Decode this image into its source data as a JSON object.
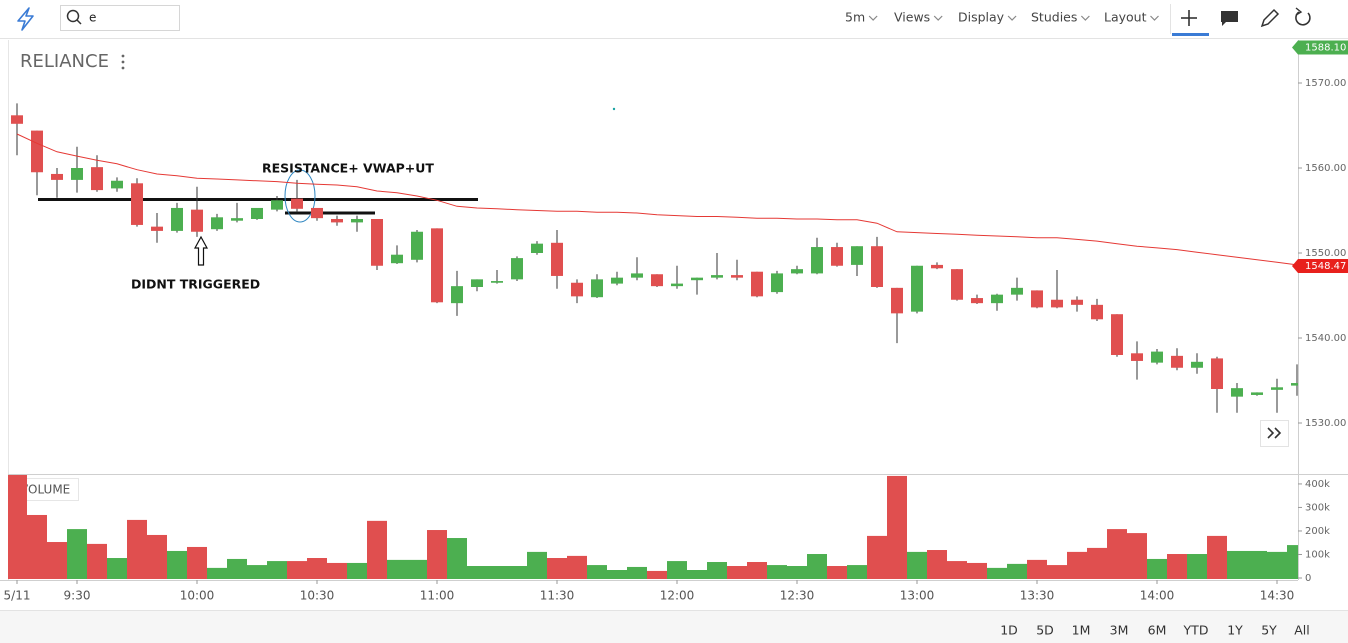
{
  "toolbar": {
    "search": "e",
    "menus": [
      "5m",
      "Views",
      "Display",
      "Studies",
      "Layout"
    ]
  },
  "chart_data": {
    "type": "candlestick",
    "title": "RELIANCE",
    "x": [
      555,
      560,
      565,
      570,
      575,
      580,
      585,
      590,
      595,
      600,
      605,
      610,
      615,
      620,
      625,
      630,
      635,
      640,
      645,
      650,
      655,
      660,
      665,
      670,
      675,
      680,
      685,
      690,
      695,
      700,
      705,
      710,
      715,
      720,
      725,
      730,
      735,
      740,
      745,
      750,
      755,
      760,
      765,
      770,
      775,
      780,
      785,
      790,
      795,
      800,
      805,
      810,
      815,
      820,
      825,
      830,
      835,
      840,
      845,
      850,
      855,
      860,
      865,
      870,
      875
    ],
    "xlim": [
      552.75,
      875.25
    ],
    "xticks": [
      {
        "value": 555,
        "label": "5/11"
      },
      {
        "value": 570,
        "label": "9:30"
      },
      {
        "value": 600,
        "label": "10:00"
      },
      {
        "value": 630,
        "label": "10:30"
      },
      {
        "value": 660,
        "label": "11:00"
      },
      {
        "value": 690,
        "label": "11:30"
      },
      {
        "value": 720,
        "label": "12:00"
      },
      {
        "value": 750,
        "label": "12:30"
      },
      {
        "value": 780,
        "label": "13:00"
      },
      {
        "value": 810,
        "label": "13:30"
      },
      {
        "value": 840,
        "label": "14:00"
      },
      {
        "value": 870,
        "label": "14:30"
      }
    ],
    "ylim": [
      1524,
      1575
    ],
    "yticks": [
      {
        "value": 1530,
        "label": "1530.00"
      },
      {
        "value": 1540,
        "label": "1540.00"
      },
      {
        "value": 1550,
        "label": "1550.00"
      },
      {
        "value": 1560,
        "label": "1560.00"
      },
      {
        "value": 1570,
        "label": "1570.00"
      }
    ],
    "open": [
      1566.2,
      1564.4,
      1559.3,
      1558.6,
      1560.1,
      1557.6,
      1558.2,
      1553.1,
      1552.6,
      1555.1,
      1552.8,
      1553.8,
      1554.0,
      1555.1,
      1556.4,
      1555.3,
      1554.0,
      1553.6,
      1554.0,
      1548.8,
      1549.2,
      1552.9,
      1544.1,
      1546.0,
      1546.5,
      1546.9,
      1550.0,
      1551.2,
      1546.5,
      1544.8,
      1546.4,
      1547.1,
      1547.5,
      1546.1,
      1546.8,
      1547.1,
      1547.4,
      1547.8,
      1545.4,
      1547.6,
      1547.6,
      1550.7,
      1548.6,
      1550.8,
      1545.9,
      1543.1,
      1548.6,
      1548.1,
      1544.7,
      1544.1,
      1545.1,
      1545.6,
      1544.5,
      1544.5,
      1543.9,
      1542.8,
      1538.2,
      1537.1,
      1537.9,
      1536.5,
      1537.6,
      1533.1,
      1533.3,
      1533.9,
      1534.4
    ],
    "high": [
      1567.6,
      1564.4,
      1560.0,
      1562.5,
      1561.5,
      1558.9,
      1558.8,
      1554.7,
      1555.9,
      1557.8,
      1554.6,
      1555.9,
      1555.3,
      1556.7,
      1558.6,
      1555.3,
      1554.4,
      1554.4,
      1554.0,
      1550.9,
      1552.7,
      1552.9,
      1547.9,
      1546.9,
      1548.0,
      1549.6,
      1551.4,
      1552.7,
      1546.9,
      1547.5,
      1547.8,
      1549.5,
      1547.5,
      1548.5,
      1547.1,
      1550.0,
      1549.2,
      1547.8,
      1547.9,
      1548.5,
      1551.8,
      1551.2,
      1550.8,
      1551.9,
      1545.9,
      1548.5,
      1548.9,
      1548.1,
      1545.1,
      1545.2,
      1547.1,
      1545.6,
      1548.0,
      1544.9,
      1544.6,
      1542.8,
      1539.6,
      1538.7,
      1538.8,
      1538.2,
      1537.8,
      1534.7,
      1533.6,
      1535.2,
      1536.9
    ],
    "low": [
      1561.5,
      1556.8,
      1556.5,
      1557.1,
      1557.2,
      1557.2,
      1553.1,
      1551.2,
      1552.4,
      1551.9,
      1552.6,
      1553.6,
      1553.9,
      1554.9,
      1554.8,
      1553.8,
      1553.2,
      1552.5,
      1548.0,
      1548.7,
      1548.9,
      1544.1,
      1542.6,
      1545.5,
      1546.4,
      1546.7,
      1549.8,
      1545.8,
      1544.1,
      1544.7,
      1546.2,
      1546.8,
      1546.0,
      1545.8,
      1545.1,
      1546.9,
      1546.8,
      1544.8,
      1545.2,
      1547.5,
      1547.5,
      1548.4,
      1547.3,
      1545.9,
      1539.4,
      1542.9,
      1548.1,
      1544.4,
      1544.0,
      1543.2,
      1544.4,
      1543.5,
      1543.5,
      1543.1,
      1542.0,
      1537.8,
      1535.1,
      1536.9,
      1536.2,
      1535.8,
      1531.2,
      1531.2,
      1533.2,
      1531.2,
      1533.2
    ],
    "close": [
      1565.2,
      1559.5,
      1558.6,
      1560.0,
      1557.4,
      1558.5,
      1553.3,
      1552.6,
      1555.3,
      1552.5,
      1554.2,
      1554.1,
      1555.3,
      1556.2,
      1555.2,
      1554.1,
      1553.6,
      1554.0,
      1548.5,
      1549.8,
      1552.5,
      1544.2,
      1546.1,
      1546.9,
      1546.7,
      1549.4,
      1551.1,
      1547.3,
      1544.9,
      1546.9,
      1547.1,
      1547.6,
      1546.1,
      1546.4,
      1547.1,
      1547.4,
      1547.1,
      1544.9,
      1547.6,
      1548.1,
      1550.7,
      1548.5,
      1550.8,
      1546.0,
      1542.9,
      1548.5,
      1548.2,
      1544.5,
      1544.1,
      1545.1,
      1545.9,
      1543.6,
      1543.6,
      1543.9,
      1542.2,
      1538.0,
      1537.3,
      1538.4,
      1536.5,
      1537.2,
      1534.0,
      1534.1,
      1533.6,
      1534.2,
      1534.7
    ],
    "up_color": "#4caf50",
    "down_color": "#e04f4f",
    "overlays": [
      {
        "type": "line",
        "color": "#e53935",
        "values": [
          1564.0,
          1562.9,
          1561.9,
          1561.4,
          1560.9,
          1560.5,
          1559.8,
          1559.3,
          1559.1,
          1558.8,
          1558.7,
          1558.6,
          1558.5,
          1558.4,
          1558.2,
          1558.1,
          1558.0,
          1557.8,
          1557.3,
          1557.1,
          1556.7,
          1556.2,
          1555.5,
          1555.3,
          1555.2,
          1555.1,
          1555.0,
          1554.9,
          1554.9,
          1554.8,
          1554.8,
          1554.7,
          1554.5,
          1554.4,
          1554.3,
          1554.3,
          1554.2,
          1554.1,
          1554.1,
          1554.0,
          1554.0,
          1553.9,
          1553.9,
          1553.5,
          1552.5,
          1552.4,
          1552.3,
          1552.2,
          1552.1,
          1552.0,
          1551.9,
          1551.8,
          1551.8,
          1551.6,
          1551.4,
          1551.1,
          1550.8,
          1550.6,
          1550.4,
          1550.1,
          1549.8,
          1549.5,
          1549.2,
          1548.9,
          1548.6
        ]
      }
    ],
    "price_tags": [
      {
        "value": 1588.1,
        "label": "1588.10",
        "color": "#4caf50"
      },
      {
        "value": 1548.47,
        "label": "1548.47",
        "color": "#e8201c"
      }
    ],
    "annotations": [
      "RESISTANCE+ VWAP+UT",
      "DIDNT TRIGGERED"
    ],
    "volume": {
      "title": "VOLUME",
      "values": [
        450000,
        268000,
        153000,
        208000,
        145000,
        85000,
        247000,
        183000,
        115000,
        132000,
        43000,
        81000,
        55000,
        72000,
        72000,
        85000,
        64000,
        64000,
        243000,
        77000,
        77000,
        204000,
        170000,
        51000,
        51000,
        51000,
        111000,
        85000,
        94000,
        55000,
        34000,
        47000,
        30000,
        72000,
        34000,
        68000,
        51000,
        68000,
        55000,
        51000,
        102000,
        51000,
        55000,
        179000,
        434000,
        111000,
        119000,
        72000,
        64000,
        43000,
        60000,
        77000,
        55000,
        111000,
        128000,
        208000,
        191000,
        81000,
        102000,
        102000,
        179000,
        115000,
        115000,
        111000,
        140000
      ],
      "ylim": [
        0,
        438000
      ],
      "yticks": [
        0,
        {
          "value": 100000,
          "label": "100k"
        },
        {
          "value": 200000,
          "label": "200k"
        },
        {
          "value": 300000,
          "label": "300k"
        },
        {
          "value": 400000,
          "label": "400k"
        }
      ]
    }
  },
  "range_buttons": [
    "1D",
    "5D",
    "1M",
    "3M",
    "6M",
    "YTD",
    "1Y",
    "5Y",
    "All"
  ]
}
